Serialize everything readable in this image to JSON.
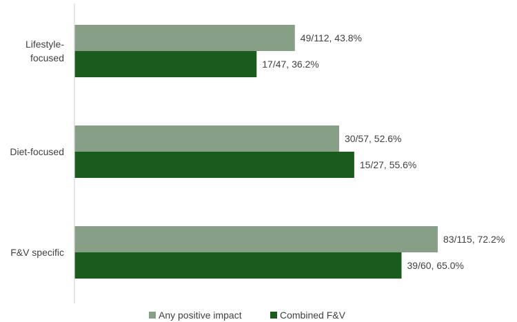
{
  "chart_data": {
    "type": "bar",
    "orientation": "horizontal",
    "categories": [
      [
        "Lifestyle-",
        "focused"
      ],
      [
        "Diet-focused"
      ],
      [
        "F&V specific"
      ]
    ],
    "series": [
      {
        "name": "Any positive impact",
        "color": "#879e87",
        "values": [
          43.8,
          52.6,
          72.2
        ],
        "labels": [
          "49/112, 43.8%",
          "30/57, 52.6%",
          "83/115, 72.2%"
        ]
      },
      {
        "name": "Combined F&V",
        "color": "#1a5c1e",
        "values": [
          36.2,
          55.6,
          65.0
        ],
        "labels": [
          "17/47, 36.2%",
          "15/27, 55.6%",
          "39/60, 65.0%"
        ]
      }
    ],
    "xlim": [
      0,
      85
    ],
    "grid": false,
    "legend": "bottom"
  }
}
